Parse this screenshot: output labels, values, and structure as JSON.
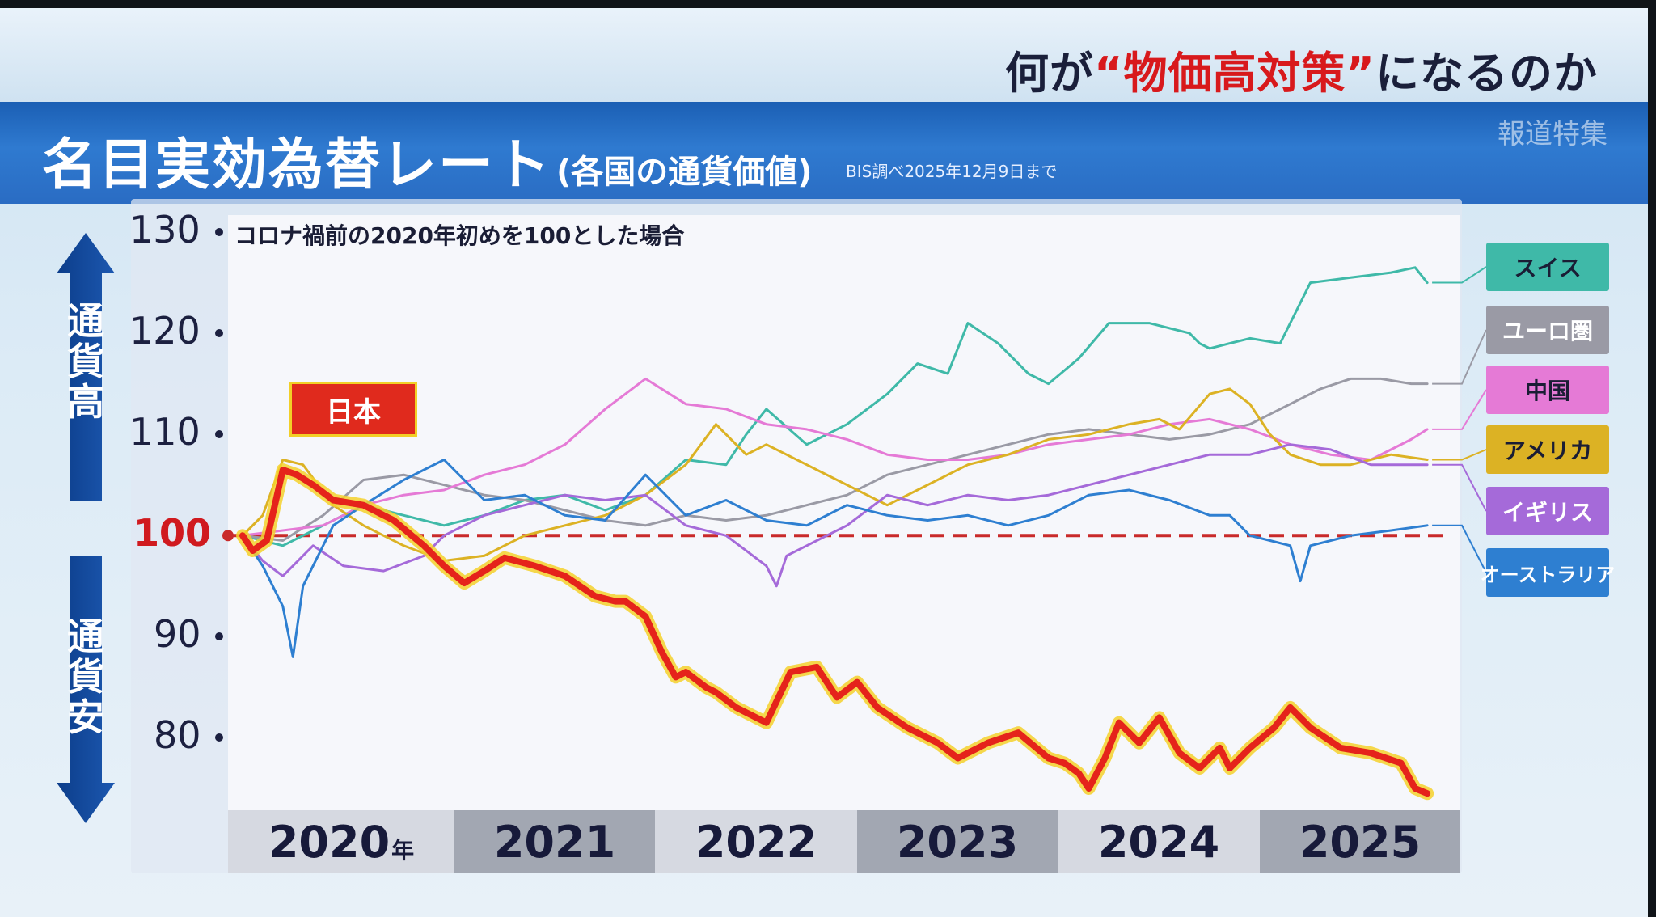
{
  "header": {
    "topic_prefix": "何が",
    "topic_highlight": "“物価高対策”",
    "topic_suffix": "になるのか",
    "program_logo": "報道特集"
  },
  "title": {
    "main": "名目実効為替レート",
    "sub": "(各国の通貨価値)",
    "source": "BIS調べ2025年12月9日まで"
  },
  "side_labels": {
    "up": "通貨高",
    "down": "通貨安"
  },
  "colors": {
    "japan": "#e5231b",
    "japan_glow": "#f4d12b",
    "swiss": "#3fb9a8",
    "euro": "#9a9aa5",
    "china": "#e57ad6",
    "usa": "#dcb224",
    "uk": "#a56ad9",
    "australia": "#2e7fd1",
    "reference": "#c92a2a"
  },
  "chart_data": {
    "type": "line",
    "note": "コロナ禍前の2020年初めを100とした場合",
    "x_categories": [
      "2020年",
      "2021",
      "2022",
      "2023",
      "2024",
      "2025"
    ],
    "xlim": [
      2020.0,
      2026.0
    ],
    "ylim": [
      73,
      132
    ],
    "yticks": [
      80,
      90,
      100,
      110,
      120,
      130
    ],
    "reference_line": 100,
    "series": [
      {
        "name": "日本",
        "key": "japan",
        "color": "#e5231b",
        "width": 8,
        "x": [
          2020.0,
          2020.05,
          2020.12,
          2020.2,
          2020.27,
          2020.35,
          2020.45,
          2020.6,
          2020.75,
          2020.9,
          2021.0,
          2021.1,
          2021.2,
          2021.3,
          2021.45,
          2021.6,
          2021.75,
          2021.85,
          2021.9,
          2022.0,
          2022.08,
          2022.15,
          2022.2,
          2022.3,
          2022.35,
          2022.45,
          2022.6,
          2022.72,
          2022.85,
          2022.95,
          2023.05,
          2023.15,
          2023.3,
          2023.45,
          2023.55,
          2023.7,
          2023.85,
          2024.0,
          2024.08,
          2024.15,
          2024.2,
          2024.28,
          2024.35,
          2024.45,
          2024.55,
          2024.65,
          2024.75,
          2024.85,
          2024.9,
          2025.0,
          2025.12,
          2025.2,
          2025.3,
          2025.45,
          2025.6,
          2025.75,
          2025.82,
          2025.88
        ],
        "y": [
          100,
          98.5,
          99.5,
          106.5,
          106,
          105,
          103.5,
          103,
          101.5,
          99,
          97,
          95.3,
          96.5,
          97.8,
          97,
          96,
          94,
          93.5,
          93.5,
          92,
          88.5,
          86,
          86.5,
          85,
          84.5,
          83,
          81.5,
          86.5,
          87,
          84,
          85.5,
          83,
          81,
          79.5,
          78,
          79.5,
          80.5,
          78,
          77.5,
          76.5,
          75,
          78,
          81.5,
          79.5,
          82,
          78.5,
          77,
          79,
          77,
          79,
          81,
          83,
          81,
          79,
          78.5,
          77.5,
          75,
          74.5
        ]
      },
      {
        "name": "スイス",
        "key": "swiss",
        "color": "#3fb9a8",
        "width": 3,
        "x": [
          2020.0,
          2020.2,
          2020.4,
          2020.6,
          2020.8,
          2021.0,
          2021.2,
          2021.4,
          2021.6,
          2021.8,
          2022.0,
          2022.2,
          2022.4,
          2022.5,
          2022.6,
          2022.8,
          2023.0,
          2023.2,
          2023.35,
          2023.5,
          2023.6,
          2023.75,
          2023.9,
          2024.0,
          2024.15,
          2024.3,
          2024.5,
          2024.7,
          2024.75,
          2024.8,
          2024.9,
          2025.0,
          2025.15,
          2025.3,
          2025.5,
          2025.7,
          2025.82,
          2025.88
        ],
        "y": [
          100,
          99,
          101,
          103,
          102,
          101,
          102,
          103.5,
          104,
          102.5,
          104,
          107.5,
          107,
          110,
          112.5,
          109,
          111,
          114,
          117,
          116,
          121,
          119,
          116,
          115,
          117.5,
          121,
          121,
          120,
          119,
          118.5,
          119,
          119.5,
          119,
          125,
          125.5,
          126,
          126.5,
          125
        ]
      },
      {
        "name": "ユーロ圏",
        "key": "euro",
        "color": "#9a9aa5",
        "width": 3,
        "x": [
          2020.0,
          2020.2,
          2020.4,
          2020.6,
          2020.8,
          2021.0,
          2021.2,
          2021.4,
          2021.6,
          2021.8,
          2022.0,
          2022.2,
          2022.4,
          2022.6,
          2022.8,
          2023.0,
          2023.2,
          2023.4,
          2023.6,
          2023.8,
          2024.0,
          2024.2,
          2024.4,
          2024.6,
          2024.8,
          2025.0,
          2025.1,
          2025.2,
          2025.35,
          2025.5,
          2025.65,
          2025.8,
          2025.88
        ],
        "y": [
          100,
          99.5,
          102,
          105.5,
          106,
          105,
          104,
          103.5,
          102.5,
          101.5,
          101,
          102,
          101.5,
          102,
          103,
          104,
          106,
          107,
          108,
          109,
          110,
          110.5,
          110,
          109.5,
          110,
          111,
          112,
          113,
          114.5,
          115.5,
          115.5,
          115,
          115
        ]
      },
      {
        "name": "中国",
        "key": "china",
        "color": "#e57ad6",
        "width": 3,
        "x": [
          2020.0,
          2020.2,
          2020.4,
          2020.6,
          2020.8,
          2021.0,
          2021.2,
          2021.4,
          2021.6,
          2021.8,
          2021.9,
          2022.0,
          2022.2,
          2022.4,
          2022.6,
          2022.8,
          2023.0,
          2023.2,
          2023.4,
          2023.6,
          2023.8,
          2024.0,
          2024.2,
          2024.4,
          2024.6,
          2024.8,
          2025.0,
          2025.2,
          2025.4,
          2025.6,
          2025.8,
          2025.88
        ],
        "y": [
          100,
          100.5,
          101,
          103,
          104,
          104.5,
          106,
          107,
          109,
          112.5,
          114,
          115.5,
          113,
          112.5,
          111,
          110.5,
          109.5,
          108,
          107.5,
          107.5,
          108,
          109,
          109.5,
          110,
          111,
          111.5,
          110.5,
          109,
          108,
          107.5,
          109.5,
          110.5
        ]
      },
      {
        "name": "アメリカ",
        "key": "usa",
        "color": "#dcb224",
        "width": 3,
        "x": [
          2020.0,
          2020.1,
          2020.2,
          2020.3,
          2020.45,
          2020.6,
          2020.8,
          2021.0,
          2021.2,
          2021.4,
          2021.6,
          2021.8,
          2022.0,
          2022.2,
          2022.35,
          2022.5,
          2022.6,
          2022.8,
          2023.0,
          2023.2,
          2023.4,
          2023.6,
          2023.8,
          2024.0,
          2024.2,
          2024.4,
          2024.55,
          2024.65,
          2024.8,
          2024.9,
          2025.0,
          2025.1,
          2025.2,
          2025.35,
          2025.5,
          2025.7,
          2025.88
        ],
        "y": [
          100,
          102,
          107.5,
          107,
          103,
          101,
          99,
          97.5,
          98,
          100,
          101,
          102,
          104,
          107,
          111,
          108,
          109,
          107,
          105,
          103,
          105,
          107,
          108,
          109.5,
          110,
          111,
          111.5,
          110.5,
          114,
          114.5,
          113,
          110,
          108,
          107,
          107,
          108,
          107.5
        ]
      },
      {
        "name": "イギリス",
        "key": "uk",
        "color": "#a56ad9",
        "width": 3,
        "x": [
          2020.0,
          2020.1,
          2020.2,
          2020.35,
          2020.5,
          2020.7,
          2020.9,
          2021.0,
          2021.2,
          2021.4,
          2021.6,
          2021.8,
          2022.0,
          2022.2,
          2022.4,
          2022.6,
          2022.65,
          2022.7,
          2022.8,
          2023.0,
          2023.2,
          2023.4,
          2023.6,
          2023.8,
          2024.0,
          2024.2,
          2024.4,
          2024.6,
          2024.8,
          2025.0,
          2025.2,
          2025.4,
          2025.6,
          2025.8,
          2025.88
        ],
        "y": [
          100,
          97.5,
          96,
          99,
          97,
          96.5,
          98,
          100,
          102,
          103,
          104,
          103.5,
          104,
          101,
          100,
          97,
          95,
          98,
          99,
          101,
          104,
          103,
          104,
          103.5,
          104,
          105,
          106,
          107,
          108,
          108,
          109,
          108.5,
          107,
          107,
          107
        ]
      },
      {
        "name": "オーストラリア",
        "key": "australia",
        "color": "#2e7fd1",
        "width": 3,
        "x": [
          2020.0,
          2020.1,
          2020.2,
          2020.25,
          2020.3,
          2020.45,
          2020.6,
          2020.8,
          2021.0,
          2021.2,
          2021.4,
          2021.6,
          2021.8,
          2022.0,
          2022.2,
          2022.4,
          2022.6,
          2022.8,
          2023.0,
          2023.2,
          2023.4,
          2023.6,
          2023.8,
          2024.0,
          2024.2,
          2024.4,
          2024.6,
          2024.8,
          2024.9,
          2025.0,
          2025.1,
          2025.2,
          2025.25,
          2025.3,
          2025.5,
          2025.7,
          2025.88
        ],
        "y": [
          100,
          97,
          93,
          88,
          95,
          101,
          103,
          105.5,
          107.5,
          103.5,
          104,
          102,
          101.5,
          106,
          102,
          103.5,
          101.5,
          101,
          103,
          102,
          101.5,
          102,
          101,
          102,
          104,
          104.5,
          103.5,
          102,
          102,
          100,
          99.5,
          99,
          95.5,
          99,
          100,
          100.5,
          101
        ]
      }
    ]
  }
}
